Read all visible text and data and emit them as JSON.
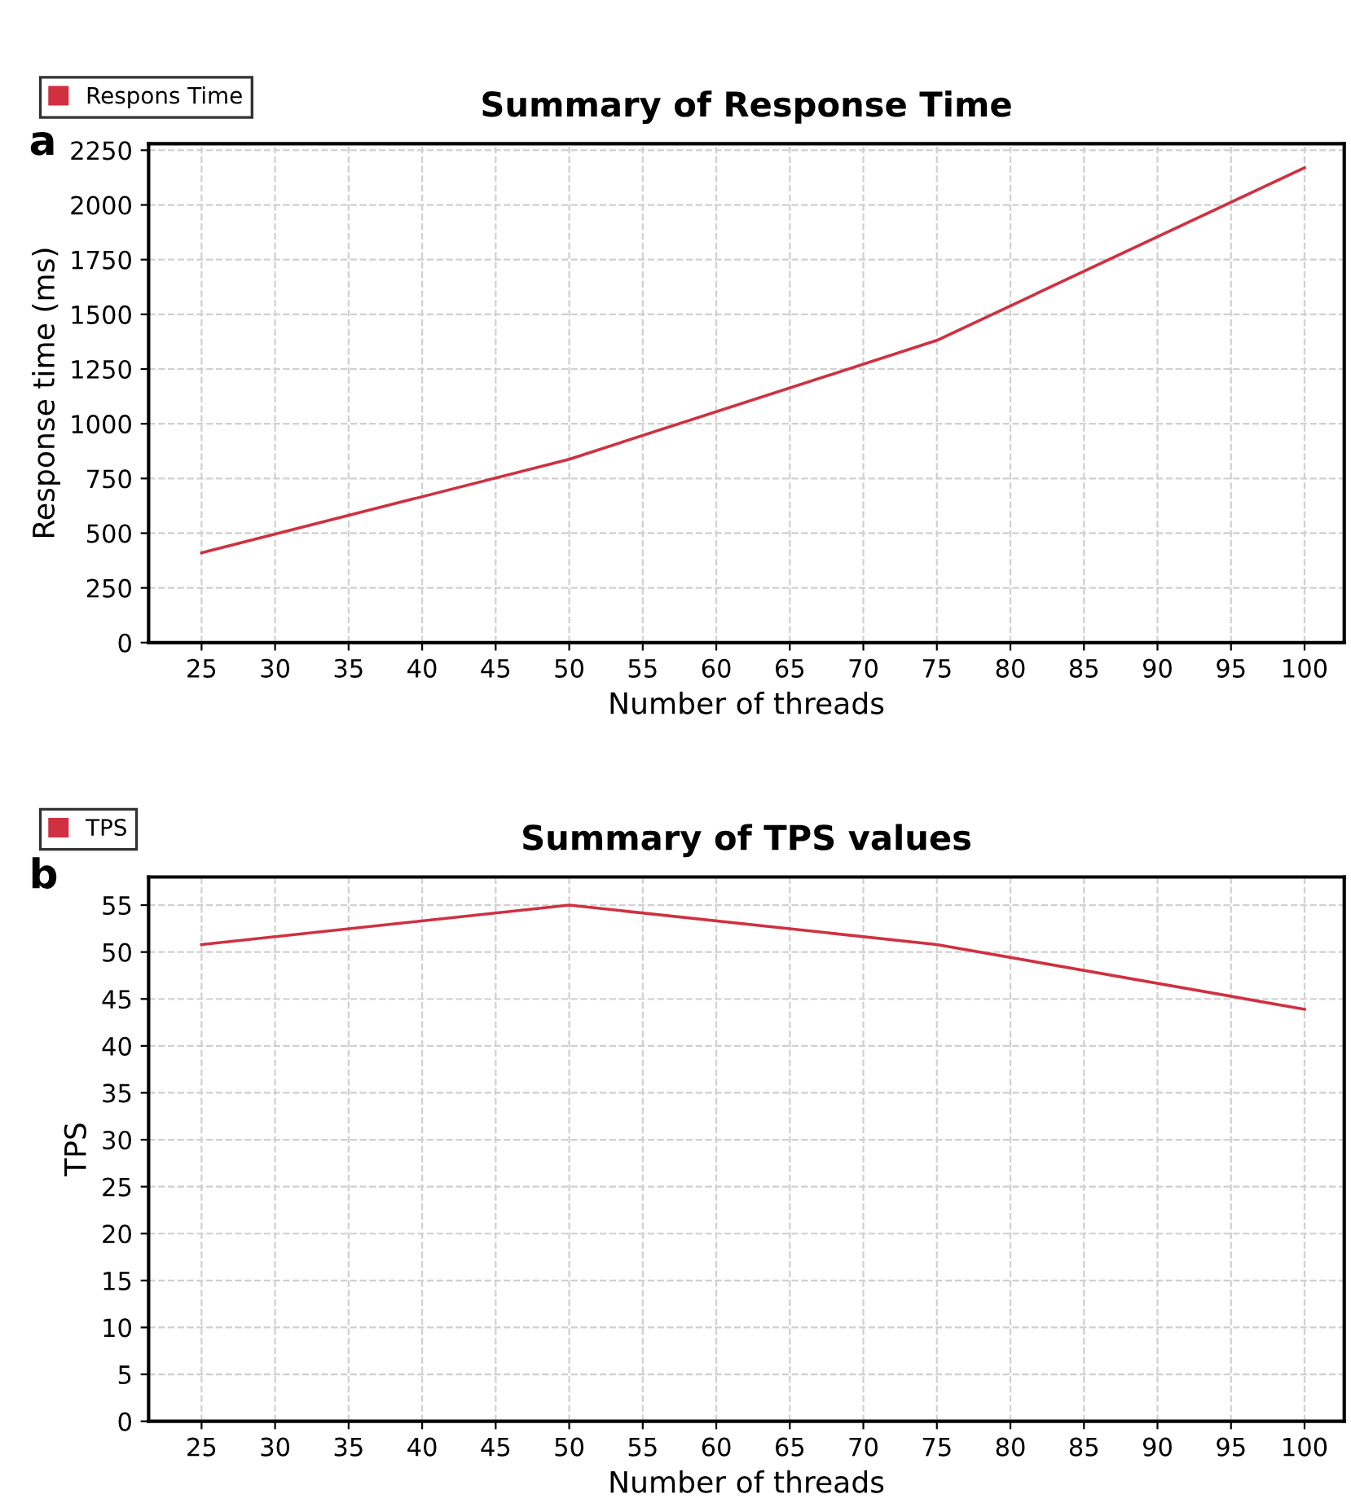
{
  "chart_data": [
    {
      "type": "line",
      "title": "Summary of Response Time",
      "xlabel": "Number of threads",
      "ylabel": "Response time (ms)",
      "annotations": [
        "a"
      ],
      "x": [
        25,
        50,
        75,
        100
      ],
      "series": [
        {
          "name": "Respons Time",
          "color": "#d03040",
          "values": [
            410,
            838,
            1381,
            2170
          ]
        }
      ],
      "xlim": [
        21.4,
        102.7
      ],
      "xticks": [
        25,
        30,
        35,
        40,
        45,
        50,
        55,
        60,
        65,
        70,
        75,
        80,
        85,
        90,
        95,
        100
      ],
      "ylim": [
        0,
        2280
      ],
      "yticks": [
        0,
        250,
        500,
        750,
        1000,
        1250,
        1500,
        1750,
        2000,
        2250
      ],
      "grid": true,
      "legend": "top left",
      "marker": "none",
      "line_style": "solid"
    },
    {
      "type": "line",
      "title": "Summary of TPS values",
      "xlabel": "Number of threads",
      "ylabel": "TPS",
      "annotations": [
        "b"
      ],
      "x": [
        25,
        50,
        75,
        100
      ],
      "series": [
        {
          "name": "TPS",
          "color": "#d03040",
          "values": [
            50.8,
            55,
            50.8,
            43.9
          ]
        }
      ],
      "xlim": [
        21.4,
        102.7
      ],
      "xticks": [
        25,
        30,
        35,
        40,
        45,
        50,
        55,
        60,
        65,
        70,
        75,
        80,
        85,
        90,
        95,
        100
      ],
      "ylim": [
        0,
        58
      ],
      "yticks": [
        0,
        5,
        10,
        15,
        20,
        25,
        30,
        35,
        40,
        45,
        50,
        55
      ],
      "grid": true,
      "legend": "top left",
      "marker": "none",
      "line_style": "solid"
    }
  ]
}
